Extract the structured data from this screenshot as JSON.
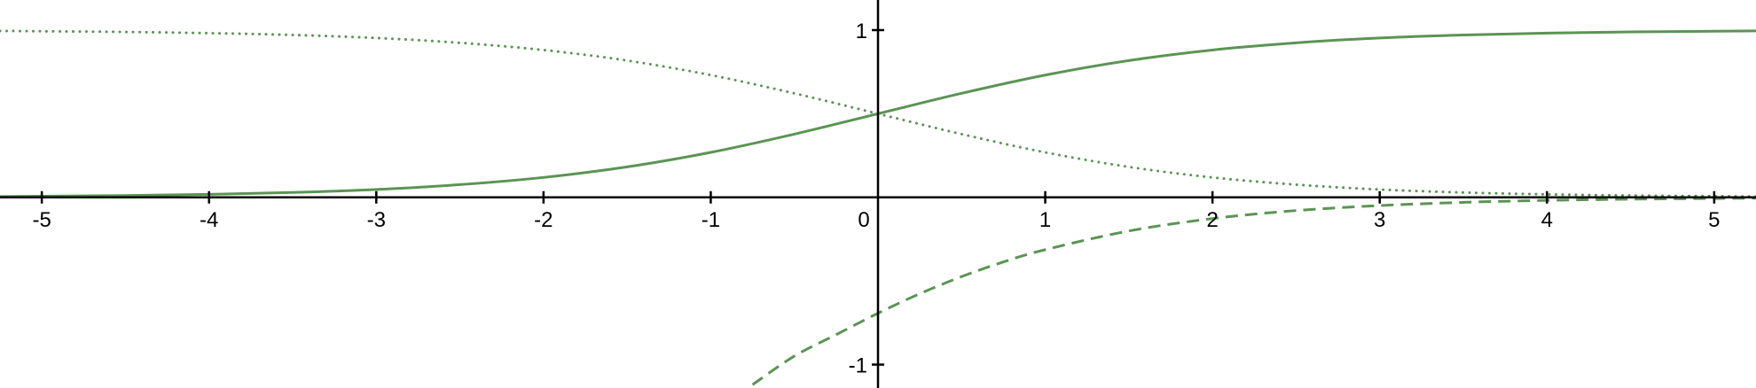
{
  "chart_data": {
    "type": "line",
    "title": "",
    "xlabel": "",
    "ylabel": "",
    "xlim": [
      -5.25,
      5.25
    ],
    "ylim": [
      -1.14,
      1.18
    ],
    "grid": false,
    "legend": "none",
    "x_ticks": [
      -5,
      -4,
      -3,
      -2,
      -1,
      0,
      1,
      2,
      3,
      4,
      5
    ],
    "x_tick_labels": [
      "-5",
      "-4",
      "-3",
      "-2",
      "-1",
      "0",
      "1",
      "2",
      "3",
      "4",
      "5"
    ],
    "y_ticks": [
      1,
      -1
    ],
    "y_tick_labels": [
      "1",
      "-1"
    ],
    "color": "#5b9454",
    "series": [
      {
        "style": "solid",
        "x": [
          -5.25,
          -5,
          -4.5,
          -4,
          -3.5,
          -3,
          -2.5,
          -2,
          -1.5,
          -1,
          -0.5,
          0,
          0.5,
          1,
          1.5,
          2,
          2.5,
          3,
          3.5,
          4,
          4.5,
          5,
          5.25
        ],
        "values": [
          0.005,
          0.007,
          0.011,
          0.018,
          0.029,
          0.047,
          0.076,
          0.119,
          0.182,
          0.269,
          0.378,
          0.5,
          0.622,
          0.731,
          0.818,
          0.881,
          0.924,
          0.953,
          0.971,
          0.982,
          0.989,
          0.993,
          0.995
        ]
      },
      {
        "style": "dotted",
        "x": [
          -5.25,
          -5,
          -4.5,
          -4,
          -3.5,
          -3,
          -2.5,
          -2,
          -1.5,
          -1,
          -0.5,
          0,
          0.5,
          1,
          1.5,
          2,
          2.5,
          3,
          3.5,
          4,
          4.5,
          5,
          5.25
        ],
        "values": [
          0.995,
          0.993,
          0.989,
          0.982,
          0.971,
          0.953,
          0.924,
          0.881,
          0.818,
          0.731,
          0.622,
          0.5,
          0.378,
          0.269,
          0.182,
          0.119,
          0.076,
          0.047,
          0.029,
          0.018,
          0.011,
          0.007,
          0.005
        ]
      },
      {
        "style": "dashed",
        "x": [
          -0.75,
          -0.5,
          -0.25,
          0,
          0.25,
          0.5,
          0.75,
          1,
          1.5,
          2,
          2.5,
          3,
          3.5,
          4,
          4.5,
          5,
          5.25
        ],
        "values": [
          -1.12,
          -0.949,
          -0.821,
          -0.693,
          -0.576,
          -0.474,
          -0.386,
          -0.313,
          -0.201,
          -0.127,
          -0.079,
          -0.049,
          -0.03,
          -0.018,
          -0.011,
          -0.007,
          -0.005
        ]
      }
    ]
  }
}
